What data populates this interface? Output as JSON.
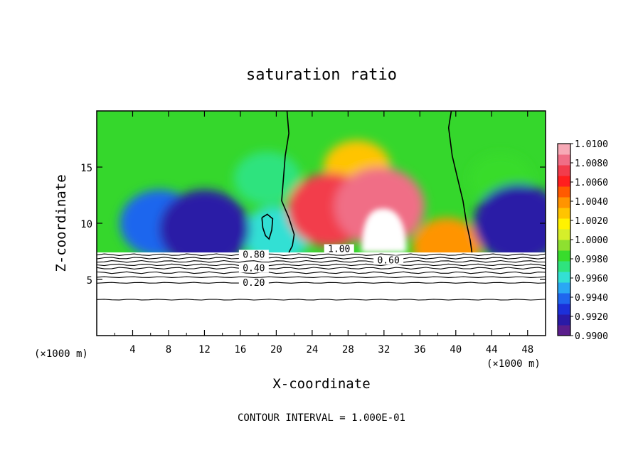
{
  "chart_data": {
    "type": "heatmap",
    "title": "saturation ratio",
    "xlabel": "X-coordinate",
    "ylabel": "Z-coordinate",
    "x_unit": "(×1000 m)",
    "z_unit": "(×1000 m)",
    "xlim": [
      0,
      50
    ],
    "ylim": [
      0,
      20
    ],
    "x_ticks": [
      "4",
      "8",
      "12",
      "16",
      "20",
      "24",
      "28",
      "32",
      "36",
      "40",
      "44",
      "48"
    ],
    "x_tick_values": [
      4,
      8,
      12,
      16,
      20,
      24,
      28,
      32,
      36,
      40,
      44,
      48
    ],
    "y_ticks": [
      "5",
      "10",
      "15"
    ],
    "y_tick_values": [
      5,
      10,
      15
    ],
    "colorbar": {
      "min": 0.99,
      "max": 1.01,
      "labels": [
        "1.0100",
        "1.0080",
        "1.0060",
        "1.0040",
        "1.0020",
        "1.0000",
        "0.9980",
        "0.9960",
        "0.9940",
        "0.9920",
        "0.9900"
      ],
      "label_values": [
        1.01,
        1.008,
        1.006,
        1.004,
        1.002,
        1.0,
        0.998,
        0.996,
        0.994,
        0.992,
        0.99
      ],
      "colors": [
        "#5a1e8c",
        "#2a1aa6",
        "#1c30d8",
        "#1f66ee",
        "#2aa8f4",
        "#33e0d4",
        "#2fe37e",
        "#38dc2c",
        "#8ee030",
        "#d6ee2a",
        "#fff200",
        "#ffc400",
        "#ff9400",
        "#ff5a00",
        "#ff1e1e",
        "#f23c4c",
        "#f06e86",
        "#f7a9b6"
      ]
    },
    "background_field": {
      "value": 1.0,
      "color": "#35d72c"
    },
    "moist_features": [
      {
        "x": 26,
        "z": 11.2,
        "value": 1.0075
      },
      {
        "x": 31.5,
        "z": 11.5,
        "value": 1.0085
      },
      {
        "x": 29,
        "z": 15,
        "value": 1.003
      },
      {
        "x": 39,
        "z": 8,
        "value": 1.0035
      }
    ],
    "dry_features": [
      {
        "x": 12,
        "z": 9.5,
        "value": 0.9915
      },
      {
        "x": 7,
        "z": 10,
        "value": 0.994
      },
      {
        "x": 47,
        "z": 10,
        "value": 0.9915
      },
      {
        "x": 20,
        "z": 9,
        "value": 0.9965
      },
      {
        "x": 19,
        "z": 14,
        "value": 0.997
      },
      {
        "x": 45,
        "z": 14,
        "value": 0.998
      }
    ],
    "saturated_region": {
      "x": [
        29.5,
        34.5
      ],
      "z_top": 11.3,
      "color": "#ffffff"
    },
    "cloud_base_z": 7.4,
    "contour_interval": 0.1,
    "contours": [
      {
        "value": 1.0,
        "label": "1.00",
        "label_x": 27,
        "label_z": 7.5
      },
      {
        "value": 0.8,
        "label": "0.80",
        "label_x": 17.5,
        "label_z": 7.0
      },
      {
        "value": 0.6,
        "label": "0.60",
        "label_x": 32.5,
        "label_z": 6.5
      },
      {
        "value": 0.4,
        "label": "0.40",
        "label_x": 17.5,
        "label_z": 5.8
      },
      {
        "value": 0.2,
        "label": "0.20",
        "label_x": 17.5,
        "label_z": 4.5
      }
    ],
    "lower_contour_z": [
      7.2,
      6.9,
      6.6,
      6.3,
      6.0,
      5.6,
      5.2,
      4.7,
      3.2
    ],
    "footer": "CONTOUR INTERVAL = 1.000E-01"
  }
}
